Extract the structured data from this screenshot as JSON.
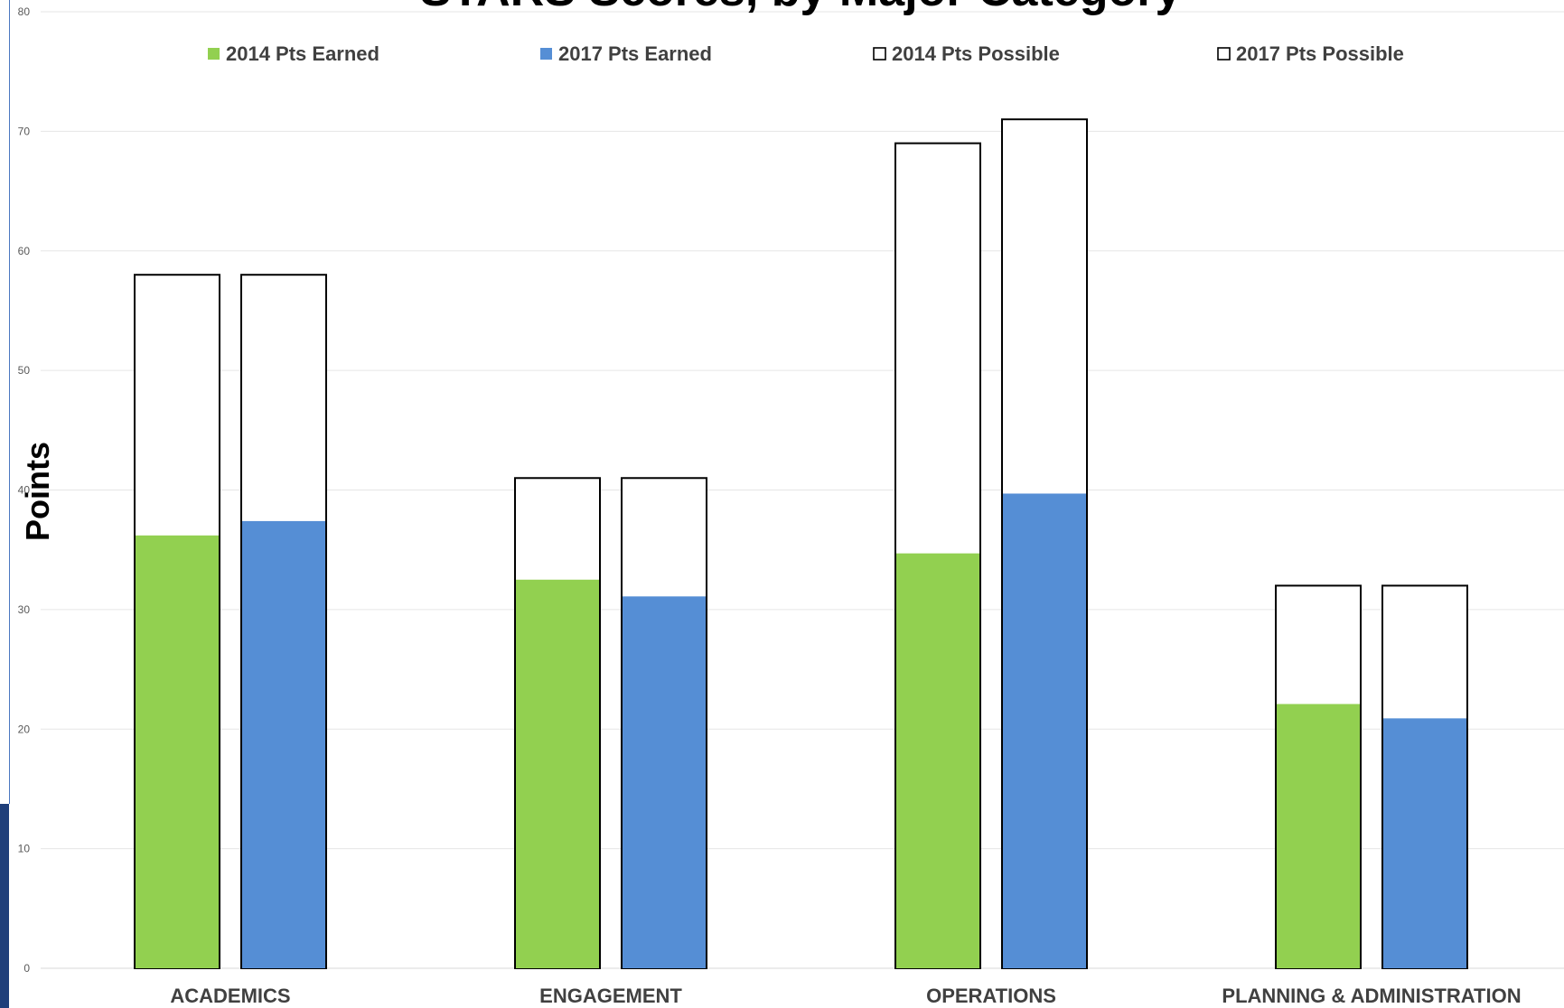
{
  "chart_data": {
    "type": "bar",
    "title": "STARS Scores, by Major Category",
    "xlabel": "",
    "ylabel": "Points",
    "ylim": [
      0,
      80
    ],
    "yticks": [
      0,
      10,
      20,
      30,
      40,
      50,
      60,
      70,
      80
    ],
    "grid": true,
    "legend_position": "top",
    "categories": [
      "ACADEMICS",
      "ENGAGEMENT",
      "OPERATIONS",
      "PLANNING & ADMINISTRATION"
    ],
    "series": [
      {
        "name": "2014 Pts Earned",
        "kind": "earned",
        "year": "2014",
        "color": "#92d050",
        "values": [
          36.2,
          32.5,
          34.7,
          22.1
        ]
      },
      {
        "name": "2017 Pts Earned",
        "kind": "earned",
        "year": "2017",
        "color": "#558ed5",
        "values": [
          37.4,
          31.1,
          39.7,
          20.9
        ]
      },
      {
        "name": "2014 Pts Possible",
        "kind": "possible",
        "year": "2014",
        "color": "#ffffff",
        "values": [
          58,
          41,
          69,
          32
        ]
      },
      {
        "name": "2017 Pts Possible",
        "kind": "possible",
        "year": "2017",
        "color": "#ffffff",
        "values": [
          58,
          41,
          71,
          32
        ]
      }
    ]
  }
}
